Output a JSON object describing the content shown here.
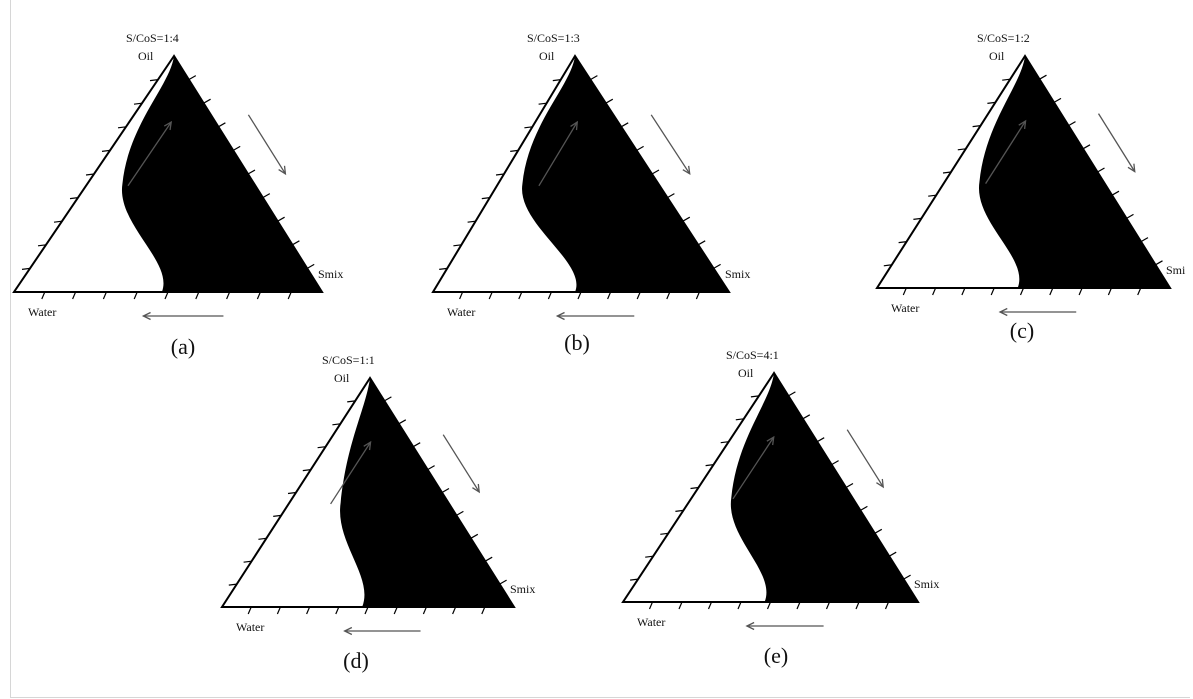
{
  "figure": {
    "diagrams": [
      {
        "id": "a",
        "ratio_label": "S/CoS=1:4",
        "caption": "(a)",
        "apex_label": "Oil",
        "left_label": "Water",
        "right_label": "Smix",
        "region_bulge": 0.34
      },
      {
        "id": "b",
        "ratio_label": "S/CoS=1:3",
        "caption": "(b)",
        "apex_label": "Oil",
        "left_label": "Water",
        "right_label": "Smix",
        "region_bulge": 0.36
      },
      {
        "id": "c",
        "ratio_label": "S/CoS=1:2",
        "caption": "(c)",
        "apex_label": "Oil",
        "left_label": "Water",
        "right_label": "Smi",
        "region_bulge": 0.32
      },
      {
        "id": "d",
        "ratio_label": "S/CoS=1:1",
        "caption": "(d)",
        "apex_label": "Oil",
        "left_label": "Water",
        "right_label": "Smix",
        "region_bulge": 0.22
      },
      {
        "id": "e",
        "ratio_label": "S/CoS=4:1",
        "caption": "(e)",
        "apex_label": "Oil",
        "left_label": "Water",
        "right_label": "Smix",
        "region_bulge": 0.3
      }
    ],
    "colors": {
      "line": "#000000",
      "region": "#000000",
      "text": "#111111"
    }
  }
}
